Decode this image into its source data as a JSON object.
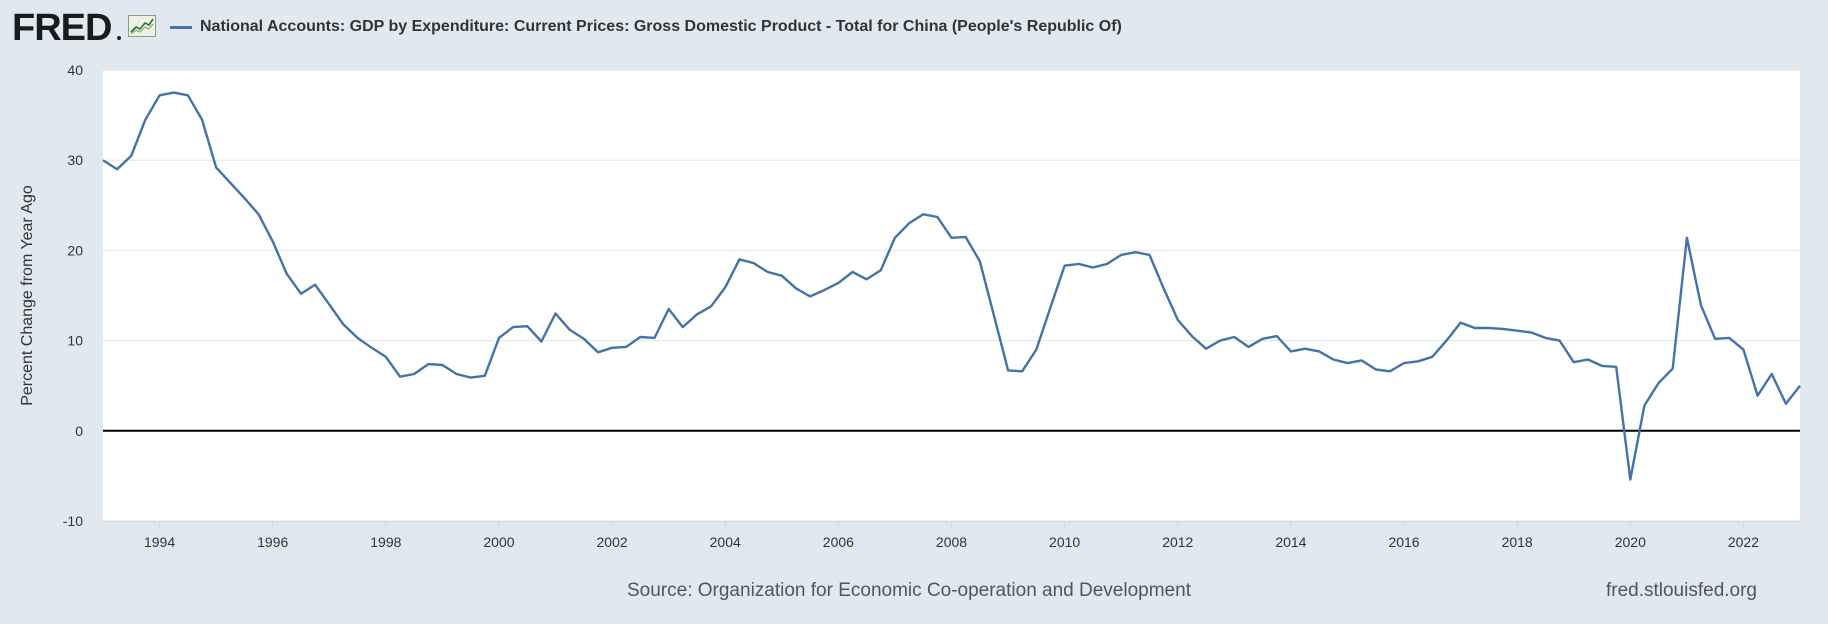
{
  "header": {
    "logo_text": "FRED",
    "legend_label": "National Accounts: GDP by Expenditure: Current Prices: Gross Domestic Product - Total for China (People's Republic Of)"
  },
  "footer": {
    "source": "Source: Organization for Economic Co-operation and Development",
    "site": "fred.stlouisfed.org"
  },
  "colors": {
    "series": "#4572a7",
    "background": "#e1e9f0",
    "plot": "#ffffff",
    "gridline": "#e6e6e6",
    "zero_line": "#000000"
  },
  "chart_data": {
    "type": "line",
    "title": "",
    "xlabel": "",
    "ylabel": "Percent Change from Year Ago",
    "xlim": [
      1993.0,
      2023.0
    ],
    "ylim": [
      -10,
      40
    ],
    "y_ticks": [
      -10,
      0,
      10,
      20,
      30,
      40
    ],
    "x_ticks": [
      1994,
      1996,
      1998,
      2000,
      2002,
      2004,
      2006,
      2008,
      2010,
      2012,
      2014,
      2016,
      2018,
      2020,
      2022
    ],
    "grid": true,
    "legend": "top-left",
    "series": [
      {
        "name": "National Accounts: GDP by Expenditure: Current Prices: Gross Domestic Product - Total for China (People's Republic Of)",
        "x": [
          1993.0,
          1993.25,
          1993.5,
          1993.75,
          1994.0,
          1994.25,
          1994.5,
          1994.75,
          1995.0,
          1995.25,
          1995.5,
          1995.75,
          1996.0,
          1996.25,
          1996.5,
          1996.75,
          1997.0,
          1997.25,
          1997.5,
          1997.75,
          1998.0,
          1998.25,
          1998.5,
          1998.75,
          1999.0,
          1999.25,
          1999.5,
          1999.75,
          2000.0,
          2000.25,
          2000.5,
          2000.75,
          2001.0,
          2001.25,
          2001.5,
          2001.75,
          2002.0,
          2002.25,
          2002.5,
          2002.75,
          2003.0,
          2003.25,
          2003.5,
          2003.75,
          2004.0,
          2004.25,
          2004.5,
          2004.75,
          2005.0,
          2005.25,
          2005.5,
          2005.75,
          2006.0,
          2006.25,
          2006.5,
          2006.75,
          2007.0,
          2007.25,
          2007.5,
          2007.75,
          2008.0,
          2008.25,
          2008.5,
          2008.75,
          2009.0,
          2009.25,
          2009.5,
          2009.75,
          2010.0,
          2010.25,
          2010.5,
          2010.75,
          2011.0,
          2011.25,
          2011.5,
          2011.75,
          2012.0,
          2012.25,
          2012.5,
          2012.75,
          2013.0,
          2013.25,
          2013.5,
          2013.75,
          2014.0,
          2014.25,
          2014.5,
          2014.75,
          2015.0,
          2015.25,
          2015.5,
          2015.75,
          2016.0,
          2016.25,
          2016.5,
          2016.75,
          2017.0,
          2017.25,
          2017.5,
          2017.75,
          2018.0,
          2018.25,
          2018.5,
          2018.75,
          2019.0,
          2019.25,
          2019.5,
          2019.75,
          2020.0,
          2020.25,
          2020.5,
          2020.75,
          2021.0,
          2021.25,
          2021.5,
          2021.75,
          2022.0,
          2022.25,
          2022.5,
          2022.75,
          2023.0
        ],
        "values": [
          30.0,
          29.0,
          30.5,
          34.5,
          37.2,
          37.5,
          37.2,
          34.5,
          29.2,
          27.5,
          25.8,
          24.0,
          21.0,
          17.4,
          15.2,
          16.2,
          14.0,
          11.8,
          10.3,
          9.2,
          8.2,
          6.0,
          6.3,
          7.4,
          7.3,
          6.3,
          5.9,
          6.1,
          10.3,
          11.5,
          11.6,
          9.9,
          13.0,
          11.2,
          10.2,
          8.7,
          9.2,
          9.3,
          10.4,
          10.3,
          13.5,
          11.5,
          12.9,
          13.8,
          15.9,
          19.0,
          18.6,
          17.6,
          17.2,
          15.8,
          14.9,
          15.6,
          16.4,
          17.6,
          16.8,
          17.8,
          21.4,
          23.0,
          24.0,
          23.7,
          21.4,
          21.5,
          18.8,
          12.8,
          6.7,
          6.6,
          9.0,
          13.7,
          18.3,
          18.5,
          18.1,
          18.5,
          19.5,
          19.8,
          19.5,
          15.8,
          12.3,
          10.5,
          9.1,
          10.0,
          10.4,
          9.3,
          10.2,
          10.5,
          8.8,
          9.1,
          8.8,
          7.9,
          7.5,
          7.8,
          6.8,
          6.6,
          7.5,
          7.7,
          8.2,
          10.0,
          12.0,
          11.4,
          11.4,
          11.3,
          11.1,
          10.9,
          10.3,
          10.0,
          7.6,
          7.9,
          7.2,
          7.1,
          -5.4,
          2.8,
          5.3,
          6.9,
          21.4,
          13.9,
          10.2,
          10.3,
          9.0,
          3.9,
          6.3,
          3.0,
          5.0
        ]
      }
    ]
  }
}
